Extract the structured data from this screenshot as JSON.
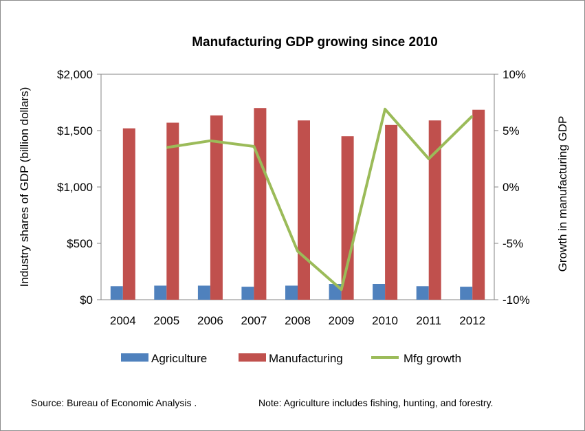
{
  "chart_data": {
    "type": "bar",
    "title": "Manufacturing GDP growing since 2010",
    "categories": [
      "2004",
      "2005",
      "2006",
      "2007",
      "2008",
      "2009",
      "2010",
      "2011",
      "2012"
    ],
    "ylabel": "Industry shares of GDP (billion dollars)",
    "y2label": "Growth in manufacturing GDP",
    "ylim": [
      0,
      2000
    ],
    "y2lim": [
      -10,
      10
    ],
    "yticks": [
      "$0",
      "$500",
      "$1,000",
      "$1,500",
      "$2,000"
    ],
    "y2ticks": [
      "-10%",
      "-5%",
      "0%",
      "5%",
      "10%"
    ],
    "series": [
      {
        "name": "Agriculture",
        "kind": "bar",
        "axis": "left",
        "color": "#4f81bd",
        "values": [
          120,
          125,
          125,
          115,
          125,
          140,
          140,
          120,
          115
        ]
      },
      {
        "name": "Manufacturing",
        "kind": "bar",
        "axis": "left",
        "color": "#c0504d",
        "values": [
          1520,
          1570,
          1635,
          1700,
          1590,
          1450,
          1550,
          1590,
          1685
        ]
      },
      {
        "name": "Mfg growth",
        "kind": "line",
        "axis": "right",
        "color": "#9bbb59",
        "values": [
          null,
          3.5,
          4.1,
          3.6,
          -5.7,
          -9.1,
          6.9,
          2.5,
          6.3
        ]
      }
    ],
    "grid": false,
    "legend_position": "bottom"
  },
  "footer": {
    "source": "Source:  Bureau of Economic Analysis .",
    "note": "Note: Agriculture includes fishing, hunting, and forestry."
  }
}
